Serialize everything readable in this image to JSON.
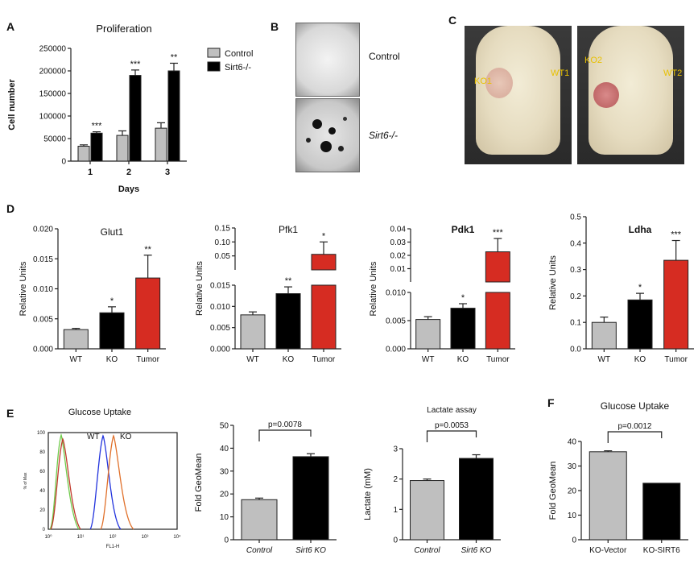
{
  "panels": {
    "A": "A",
    "B": "B",
    "C": "C",
    "D": "D",
    "E": "E",
    "F": "F"
  },
  "colors": {
    "control": "#bfbfbf",
    "ko": "#000000",
    "tumor": "#d62c22",
    "flow_green": "#6ecb4a",
    "flow_red": "#c0392b",
    "flow_blue": "#2233dd",
    "flow_orange": "#e0702a"
  },
  "panel_b": {
    "top_label": "Control",
    "bottom_label": "Sirt6-/-"
  },
  "panel_c": {
    "labels": [
      "KO1",
      "WT1",
      "KO2",
      "WT2"
    ]
  },
  "panel_e": {
    "flow_title": "Glucose Uptake",
    "flow_ylabel": "% of Max",
    "flow_xlabel": "FL1-H",
    "wt_label": "WT",
    "ko_label": "KO",
    "flow_yticks": [
      "0",
      "20",
      "40",
      "60",
      "80",
      "100"
    ],
    "flow_xticks": [
      "10⁰",
      "10¹",
      "10²",
      "10³",
      "10⁴"
    ]
  },
  "chart_data": [
    {
      "id": "A",
      "type": "bar",
      "title": "Proliferation",
      "xlabel": "Days",
      "ylabel": "Cell number",
      "categories": [
        "1",
        "2",
        "3"
      ],
      "series": [
        {
          "name": "Control",
          "values": [
            33000,
            57000,
            73000
          ],
          "errors": [
            3000,
            10000,
            12000
          ]
        },
        {
          "name": "Sirt6-/-",
          "values": [
            62000,
            190000,
            200000
          ],
          "errors": [
            3000,
            12000,
            17000
          ]
        }
      ],
      "sig": [
        "***",
        "***",
        "**"
      ],
      "ylim": [
        0,
        250000
      ],
      "yticks": [
        "0",
        "50000",
        "100000",
        "150000",
        "200000",
        "250000"
      ],
      "legend": [
        "Control",
        "Sirt6-/-"
      ]
    },
    {
      "id": "D1",
      "type": "bar",
      "title": "Glut1",
      "ylabel": "Relative Units",
      "categories": [
        "WT",
        "KO",
        "Tumor"
      ],
      "values": [
        0.0032,
        0.006,
        0.0118
      ],
      "errors": [
        0.0002,
        0.001,
        0.0038
      ],
      "sig": [
        "",
        "*",
        "**"
      ],
      "ylim": [
        0,
        0.02
      ],
      "yticks": [
        "0.000",
        "0.005",
        "0.010",
        "0.015",
        "0.020"
      ]
    },
    {
      "id": "D2",
      "type": "bar",
      "title": "Pfk1",
      "ylabel": "Relative Units",
      "categories": [
        "WT",
        "KO",
        "Tumor"
      ],
      "values": [
        0.008,
        0.013,
        0.065
      ],
      "errors": [
        0.0007,
        0.0016,
        0.04
      ],
      "sig": [
        "",
        "**",
        "*"
      ],
      "ylim_lower": [
        0,
        0.015
      ],
      "ylim_upper": [
        0.015,
        0.15
      ],
      "yticks_lower": [
        "0.000",
        "0.005",
        "0.010",
        "0.015"
      ],
      "yticks_upper": [
        "0.05",
        "0.10",
        "0.15"
      ]
    },
    {
      "id": "D3",
      "type": "bar",
      "title": "Pdk1",
      "ylabel": "Relative Units",
      "categories": [
        "WT",
        "KO",
        "Tumor"
      ],
      "values": [
        0.0052,
        0.0072,
        0.027
      ],
      "errors": [
        0.0005,
        0.0008,
        0.0075
      ],
      "sig": [
        "",
        "*",
        "***"
      ],
      "ylim_lower": [
        0,
        0.01
      ],
      "ylim_upper": [
        0.01,
        0.04
      ],
      "yticks_lower": [
        "0.000",
        "0.005",
        "0.010"
      ],
      "yticks_upper": [
        "0.01",
        "0.02",
        "0.03",
        "0.04"
      ]
    },
    {
      "id": "D4",
      "type": "bar",
      "title": "Ldha",
      "ylabel": "Relative Units",
      "categories": [
        "WT",
        "KO",
        "Tumor"
      ],
      "values": [
        0.1,
        0.185,
        0.335
      ],
      "errors": [
        0.02,
        0.025,
        0.075
      ],
      "sig": [
        "",
        "*",
        "***"
      ],
      "ylim": [
        0,
        0.5
      ],
      "yticks": [
        "0.0",
        "0.1",
        "0.2",
        "0.3",
        "0.4",
        "0.5"
      ]
    },
    {
      "id": "E2",
      "type": "bar",
      "ylabel": "Fold GeoMean",
      "categories": [
        "Control",
        "Sirt6 KO"
      ],
      "values": [
        17.5,
        36.3
      ],
      "errors": [
        0.7,
        1.3
      ],
      "pvalue": "p=0.0078",
      "ylim": [
        0,
        50
      ],
      "yticks": [
        "0",
        "10",
        "20",
        "30",
        "40",
        "50"
      ]
    },
    {
      "id": "E3",
      "type": "bar",
      "title": "Lactate assay",
      "ylabel": "Lactate (mM)",
      "categories": [
        "Control",
        "Sirt6 KO"
      ],
      "values": [
        1.95,
        2.68
      ],
      "errors": [
        0.05,
        0.12
      ],
      "pvalue": "p=0.0053",
      "ylim": [
        0,
        3
      ],
      "yticks": [
        "0",
        "1",
        "2",
        "3"
      ]
    },
    {
      "id": "F",
      "type": "bar",
      "title": "Glucose Uptake",
      "ylabel": "Fold GeoMean",
      "categories": [
        "KO-Vector",
        "KO-SIRT6"
      ],
      "values": [
        35.8,
        23
      ],
      "errors": [
        0.4,
        0
      ],
      "pvalue": "p=0.0012",
      "ylim": [
        0,
        40
      ],
      "yticks": [
        "0",
        "10",
        "20",
        "30",
        "40"
      ]
    }
  ]
}
